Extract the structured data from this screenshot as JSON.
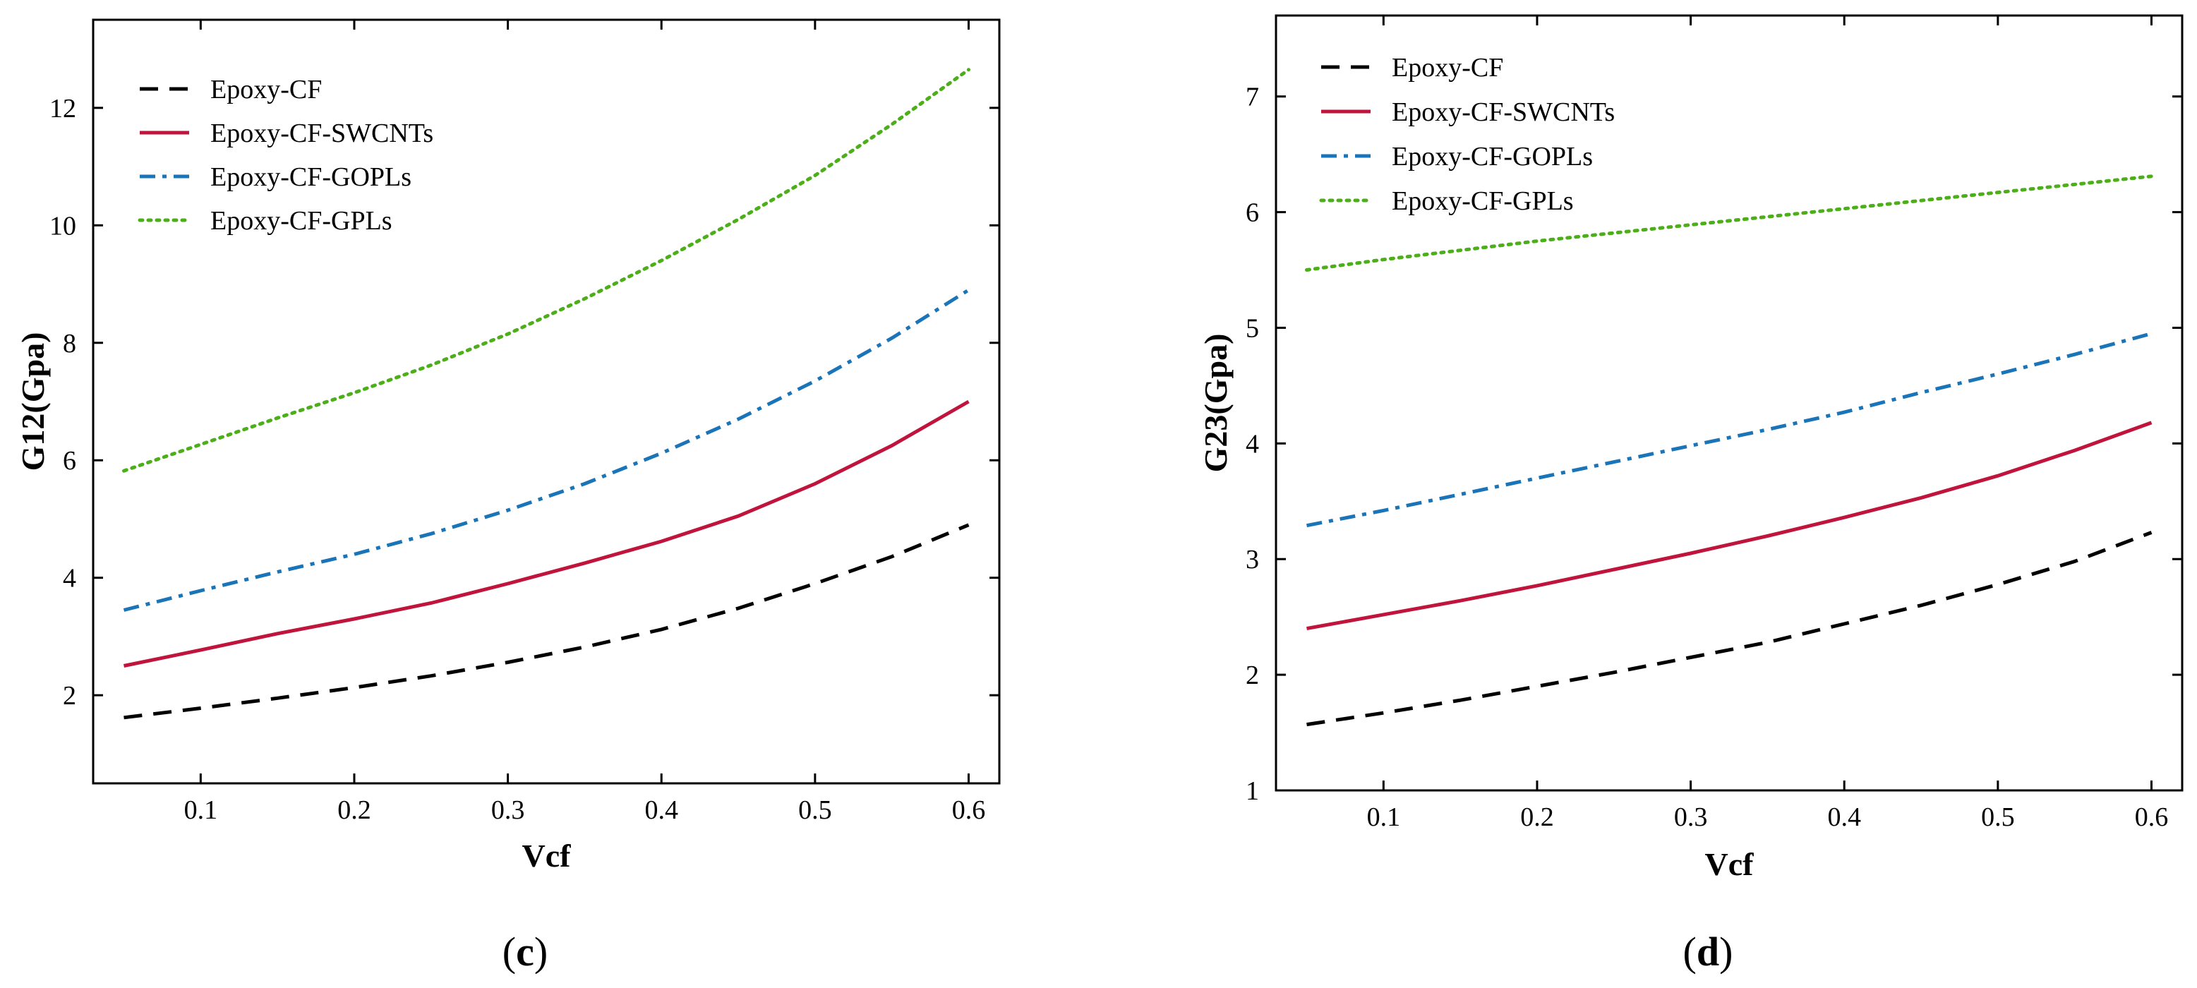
{
  "chart_data": [
    {
      "type": "line",
      "panel_label": "c",
      "xlabel": "Vcf",
      "ylabel": "G12(Gpa)",
      "xlim": [
        0.03,
        0.62
      ],
      "ylim": [
        0.5,
        13.5
      ],
      "xticks": [
        0.1,
        0.2,
        0.3,
        0.4,
        0.5,
        0.6
      ],
      "xtick_labels": [
        "0.1",
        "0.2",
        "0.3",
        "0.4",
        "0.5",
        "0.6"
      ],
      "yticks": [
        2,
        4,
        6,
        8,
        10,
        12
      ],
      "ytick_labels": [
        "2",
        "4",
        "6",
        "8",
        "10",
        "12"
      ],
      "legend_position": "top-left",
      "x": [
        0.05,
        0.1,
        0.15,
        0.2,
        0.25,
        0.3,
        0.35,
        0.4,
        0.45,
        0.5,
        0.55,
        0.6
      ],
      "series": [
        {
          "name": "Epoxy-CF",
          "color": "#000000",
          "dash": "dash",
          "values": [
            1.62,
            1.78,
            1.95,
            2.13,
            2.33,
            2.56,
            2.82,
            3.12,
            3.48,
            3.9,
            4.36,
            4.9
          ]
        },
        {
          "name": "Epoxy-CF-SWCNTs",
          "color": "#c0143c",
          "dash": "solid",
          "values": [
            2.5,
            2.77,
            3.05,
            3.3,
            3.57,
            3.9,
            4.25,
            4.62,
            5.05,
            5.6,
            6.25,
            7.0
          ]
        },
        {
          "name": "Epoxy-CF-GOPLs",
          "color": "#1a74b8",
          "dash": "dashdot",
          "values": [
            3.45,
            3.78,
            4.1,
            4.4,
            4.75,
            5.15,
            5.6,
            6.12,
            6.7,
            7.35,
            8.08,
            8.9
          ]
        },
        {
          "name": "Epoxy-CF-GPLs",
          "color": "#4caf1a",
          "dash": "dot",
          "values": [
            5.82,
            6.27,
            6.72,
            7.15,
            7.62,
            8.15,
            8.75,
            9.4,
            10.1,
            10.85,
            11.72,
            12.65
          ]
        }
      ]
    },
    {
      "type": "line",
      "panel_label": "d",
      "xlabel": "Vcf",
      "ylabel": "G23(Gpa)",
      "xlim": [
        0.03,
        0.62
      ],
      "ylim": [
        1,
        7.7
      ],
      "xticks": [
        0.1,
        0.2,
        0.3,
        0.4,
        0.5,
        0.6
      ],
      "xtick_labels": [
        "0.1",
        "0.2",
        "0.3",
        "0.4",
        "0.5",
        "0.6"
      ],
      "yticks": [
        1,
        2,
        3,
        4,
        5,
        6,
        7
      ],
      "ytick_labels": [
        "1",
        "2",
        "3",
        "4",
        "5",
        "6",
        "7"
      ],
      "legend_position": "top-left",
      "x": [
        0.05,
        0.1,
        0.15,
        0.2,
        0.25,
        0.3,
        0.35,
        0.4,
        0.45,
        0.5,
        0.55,
        0.6
      ],
      "series": [
        {
          "name": "Epoxy-CF",
          "color": "#000000",
          "dash": "dash",
          "values": [
            1.57,
            1.67,
            1.78,
            1.9,
            2.02,
            2.15,
            2.28,
            2.44,
            2.6,
            2.78,
            2.98,
            3.23
          ]
        },
        {
          "name": "Epoxy-CF-SWCNTs",
          "color": "#c0143c",
          "dash": "solid",
          "values": [
            2.4,
            2.52,
            2.64,
            2.77,
            2.91,
            3.05,
            3.2,
            3.36,
            3.53,
            3.72,
            3.94,
            4.18
          ]
        },
        {
          "name": "Epoxy-CF-GOPLs",
          "color": "#1a74b8",
          "dash": "dashdot",
          "values": [
            3.29,
            3.42,
            3.56,
            3.7,
            3.84,
            3.98,
            4.12,
            4.27,
            4.44,
            4.6,
            4.77,
            4.95
          ]
        },
        {
          "name": "Epoxy-CF-GPLs",
          "color": "#4caf1a",
          "dash": "dot",
          "values": [
            5.5,
            5.59,
            5.67,
            5.75,
            5.82,
            5.89,
            5.96,
            6.03,
            6.1,
            6.17,
            6.24,
            6.31
          ]
        }
      ]
    }
  ]
}
